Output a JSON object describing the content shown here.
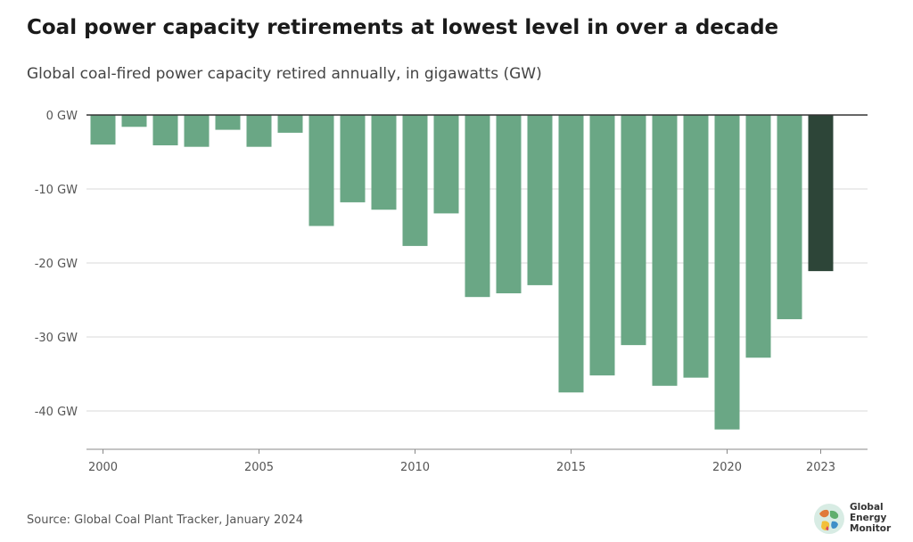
{
  "header": {
    "title": "Coal power capacity retirements at lowest level in over a decade",
    "subtitle": "Global coal-fired power capacity retired annually, in gigawatts (GW)"
  },
  "footer": {
    "source": "Source: Global Coal Plant Tracker, January 2024"
  },
  "logo": {
    "wordmark": "Global Energy Monitor",
    "icon": "globe-icon"
  },
  "colors": {
    "bar": "#6aa785",
    "bar_highlight": "#2d4538",
    "grid": "#d9d9d9",
    "zero_line": "#333333"
  },
  "chart_data": {
    "type": "bar",
    "title": "Coal power capacity retirements at lowest level in over a decade",
    "subtitle": "Global coal-fired power capacity retired annually, in gigawatts (GW)",
    "xlabel": "",
    "ylabel": "",
    "unit": "GW",
    "categories": [
      "2000",
      "2001",
      "2002",
      "2003",
      "2004",
      "2005",
      "2006",
      "2007",
      "2008",
      "2009",
      "2010",
      "2011",
      "2012",
      "2013",
      "2014",
      "2015",
      "2016",
      "2017",
      "2018",
      "2019",
      "2020",
      "2021",
      "2022",
      "2023"
    ],
    "values": [
      -4.0,
      -1.6,
      -4.1,
      -4.3,
      -2.0,
      -4.3,
      -2.4,
      -15.0,
      -11.8,
      -12.8,
      -17.7,
      -13.3,
      -24.6,
      -24.1,
      -23.0,
      -37.5,
      -35.2,
      -31.1,
      -36.6,
      -35.5,
      -42.5,
      -32.8,
      -27.6,
      -21.1
    ],
    "highlight": "2023",
    "ylim": [
      -45,
      0
    ],
    "y_ticks": [
      0,
      -10,
      -20,
      -30,
      -40
    ],
    "y_tick_labels": [
      "0 GW",
      "-10 GW",
      "-20 GW",
      "-30 GW",
      "-40 GW"
    ],
    "x_tick_labels": [
      "2000",
      "2005",
      "2010",
      "2015",
      "2020",
      "2023"
    ],
    "grid": true
  }
}
